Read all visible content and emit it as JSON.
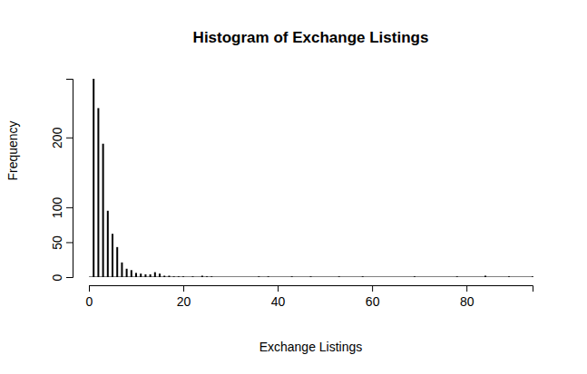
{
  "chart_data": {
    "type": "bar",
    "title": "Histogram of Exchange Listings",
    "x_label": "Exchange Listings",
    "y_label": "Frequency",
    "x": [
      1,
      2,
      3,
      4,
      5,
      6,
      7,
      8,
      9,
      10,
      11,
      12,
      13,
      14,
      15,
      16,
      17,
      18,
      19,
      20,
      22,
      24,
      25,
      26,
      36,
      38,
      43,
      47,
      53,
      58,
      69,
      78,
      84,
      89,
      94
    ],
    "values": [
      284,
      242,
      191,
      95,
      62,
      43,
      21,
      12,
      10,
      6,
      5,
      4,
      4,
      7,
      5,
      2,
      2,
      1,
      1,
      1,
      1,
      2,
      1,
      1,
      1,
      1,
      1,
      1,
      1,
      1,
      1,
      1,
      2,
      1,
      1
    ],
    "color": "#000000",
    "xlim": [
      0,
      94
    ],
    "xticks": [
      0,
      20,
      40,
      60,
      80
    ],
    "ylim": [
      0,
      284
    ],
    "yticks": [
      0,
      50,
      100,
      200
    ],
    "grid": false
  }
}
